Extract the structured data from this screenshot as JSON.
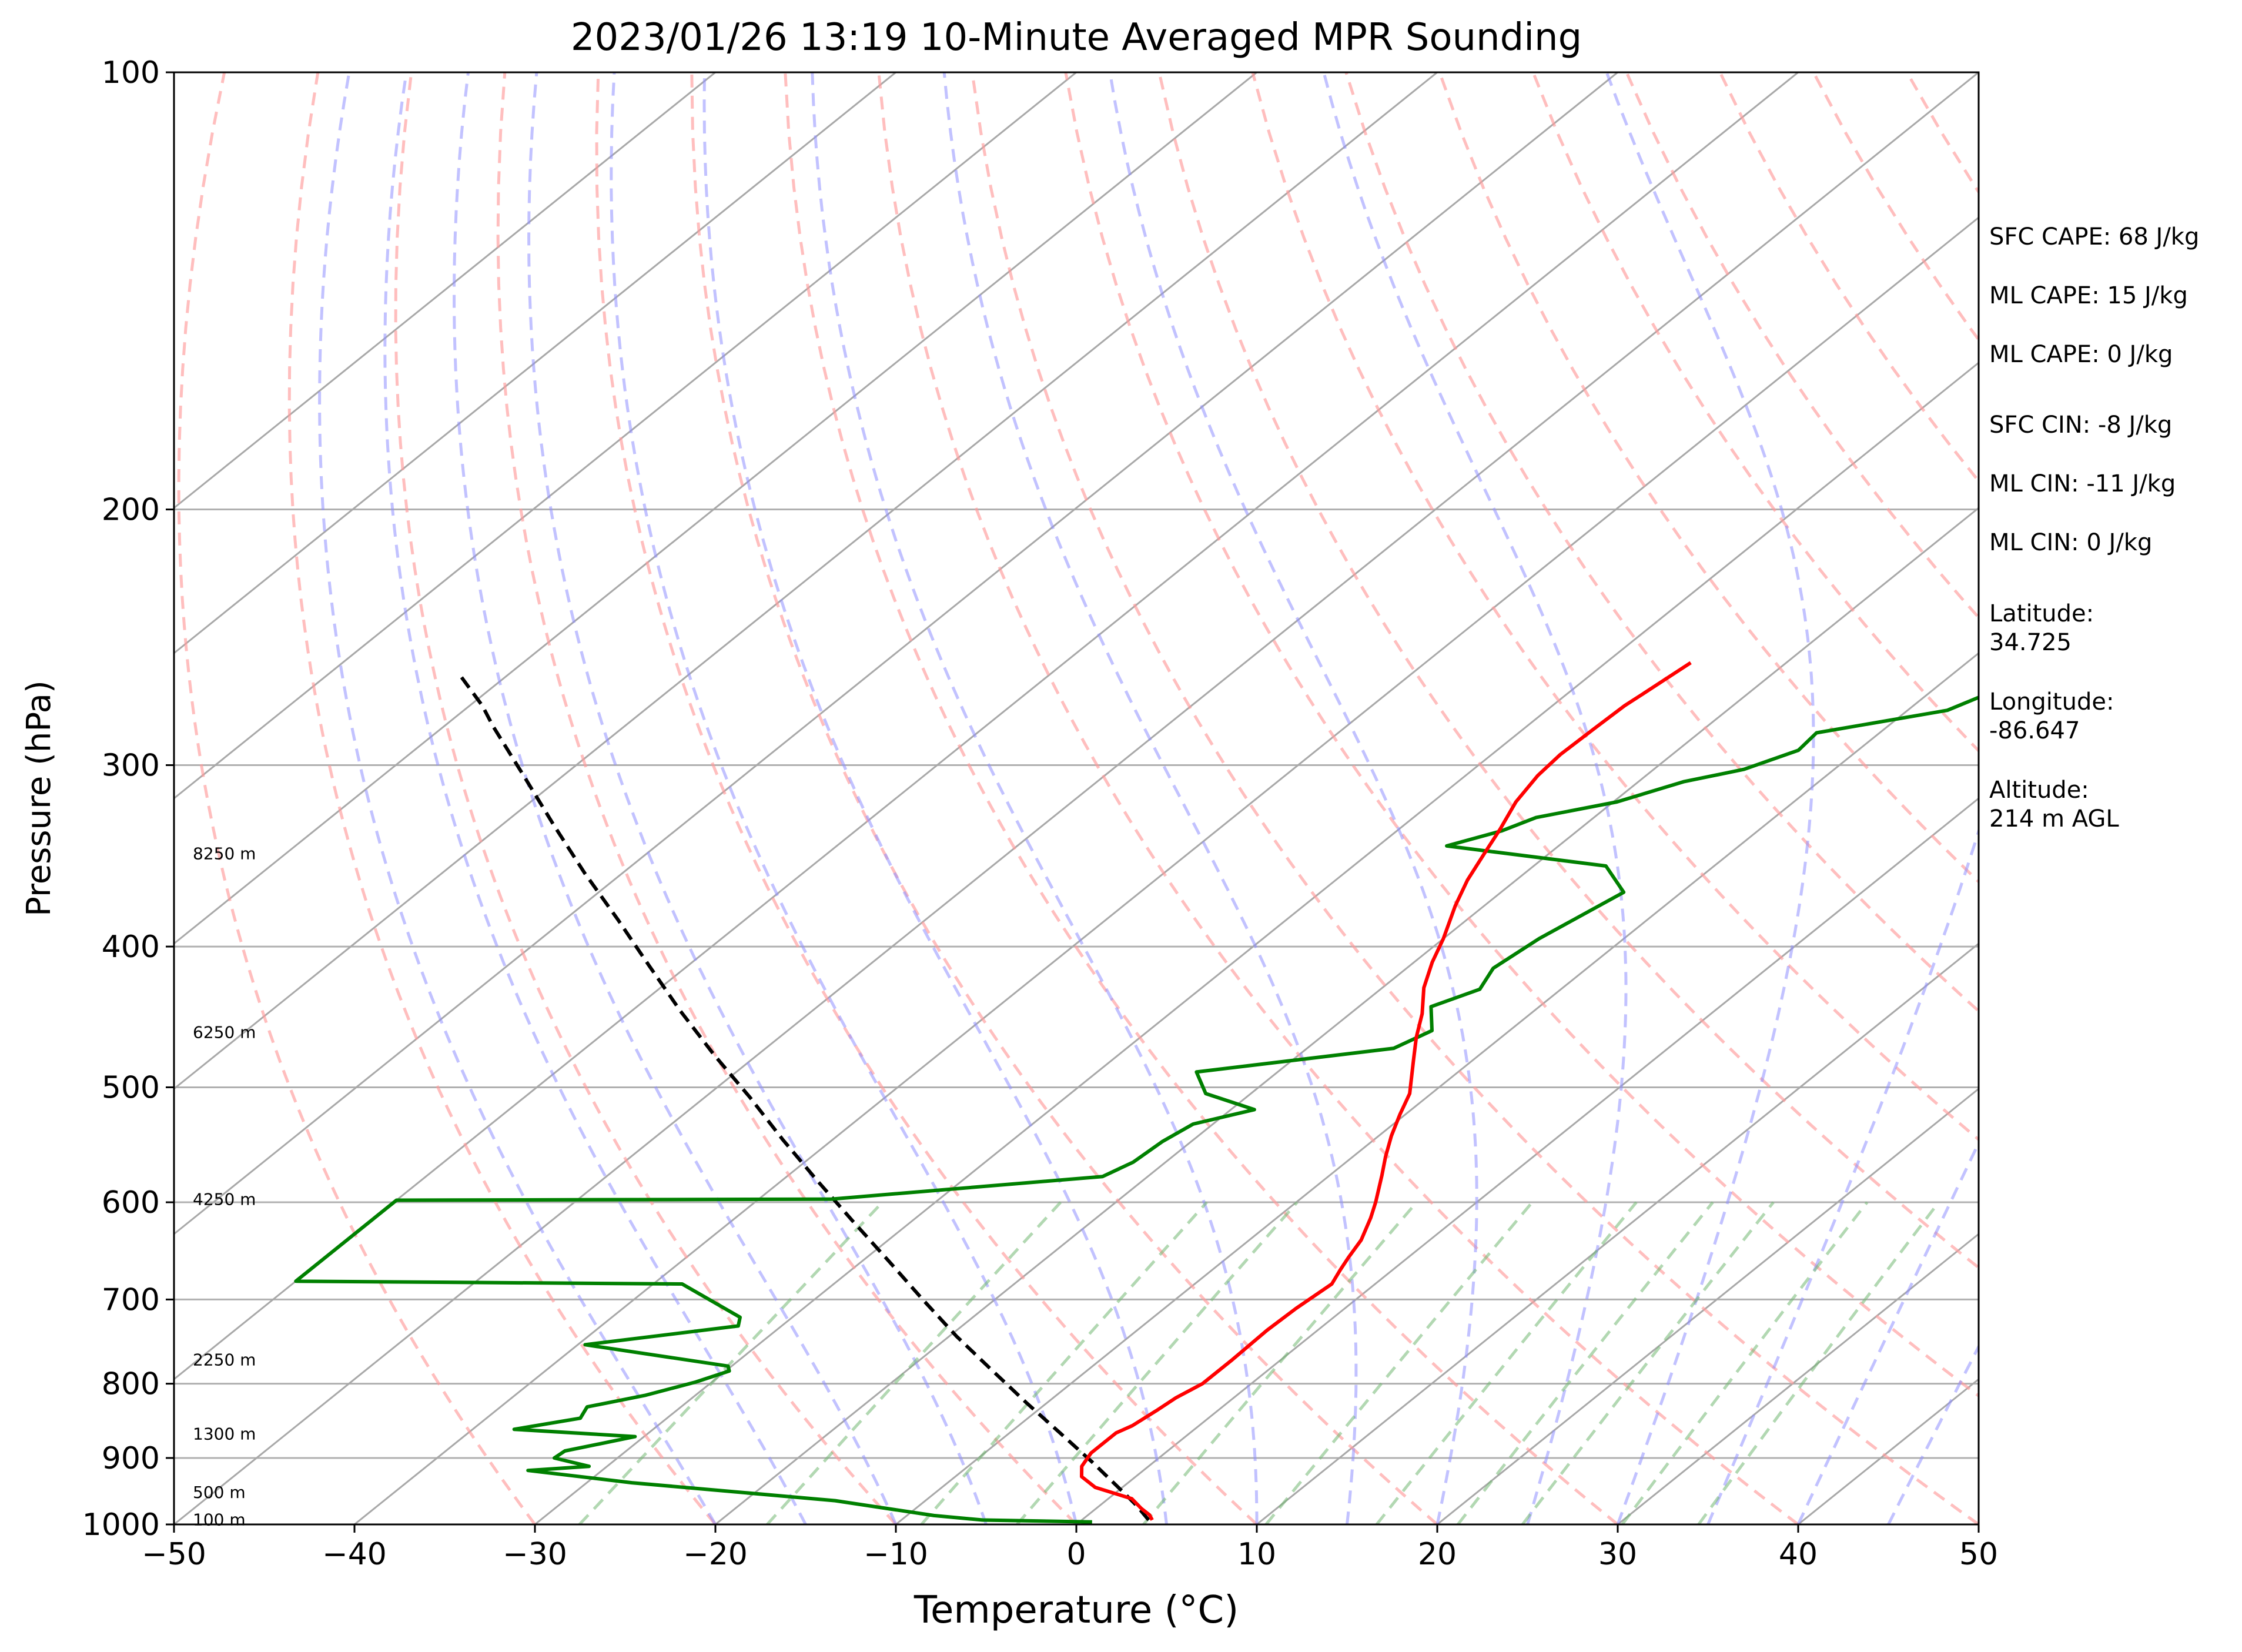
{
  "chart_data": {
    "type": "line",
    "subtype": "skew-T log-P sounding",
    "title": "2023/01/26 13:19 10-Minute Averaged MPR Sounding",
    "xlabel": "Temperature (°C)",
    "ylabel": "Pressure (hPa)",
    "xlim": [
      -50,
      50
    ],
    "ylim": [
      1000,
      100
    ],
    "y_scale": "log",
    "x_ticks": [
      "−50",
      "−40",
      "−30",
      "−20",
      "−10",
      "0",
      "10",
      "20",
      "30",
      "40",
      "50"
    ],
    "y_ticks": [
      "100",
      "200",
      "300",
      "400",
      "500",
      "600",
      "700",
      "800",
      "900",
      "1000"
    ],
    "grid": true,
    "legend": "none",
    "height_labels": [
      {
        "text": "8250 m",
        "p": 345
      },
      {
        "text": "6250 m",
        "p": 458
      },
      {
        "text": "4250 m",
        "p": 597
      },
      {
        "text": "2250 m",
        "p": 770
      },
      {
        "text": "1300 m",
        "p": 866
      },
      {
        "text": "500 m",
        "p": 950
      },
      {
        "text": "100 m",
        "p": 992
      }
    ],
    "stats": [
      "SFC CAPE: 68 J/kg",
      "ML CAPE: 15 J/kg",
      "ML CAPE: 0 J/kg",
      "SFC CIN: -8 J/kg",
      "ML CIN: -11 J/kg",
      "ML CIN: 0 J/kg"
    ],
    "location": {
      "latitude_label": "Latitude:",
      "latitude": "34.725",
      "longitude_label": "Longitude:",
      "longitude": "-86.647",
      "altitude_label": "Altitude:",
      "altitude": "214 m AGL"
    },
    "series": [
      {
        "role": "temperature",
        "color": "#ff0000",
        "points": [
          [
            3.9,
            993
          ],
          [
            3.4,
            985
          ],
          [
            2.5,
            975
          ],
          [
            1.3,
            960
          ],
          [
            -1.5,
            943
          ],
          [
            -3.0,
            927
          ],
          [
            -3.7,
            912
          ],
          [
            -4.1,
            893
          ],
          [
            -4.1,
            865
          ],
          [
            -3.7,
            855
          ],
          [
            -3.4,
            835
          ],
          [
            -3.2,
            818
          ],
          [
            -2.7,
            800
          ],
          [
            -2.7,
            770
          ],
          [
            -2.8,
            735
          ],
          [
            -2.7,
            710
          ],
          [
            -2.4,
            683
          ],
          [
            -2.9,
            668
          ],
          [
            -3.3,
            655
          ],
          [
            -3.8,
            637
          ],
          [
            -4.8,
            615
          ],
          [
            -5.6,
            600
          ],
          [
            -7.1,
            575
          ],
          [
            -8.2,
            558
          ],
          [
            -9.3,
            540
          ],
          [
            -10.3,
            522
          ],
          [
            -11.2,
            505
          ],
          [
            -13.2,
            480
          ],
          [
            -14.7,
            462
          ],
          [
            -16.0,
            445
          ],
          [
            -17.7,
            427
          ],
          [
            -19.0,
            410
          ],
          [
            -20.0,
            395
          ],
          [
            -21.6,
            375
          ],
          [
            -22.7,
            360
          ],
          [
            -23.6,
            345
          ],
          [
            -24.4,
            332
          ],
          [
            -25.4,
            318
          ],
          [
            -26.0,
            305
          ],
          [
            -26.2,
            295
          ],
          [
            -26.1,
            283
          ],
          [
            -26.0,
            273
          ],
          [
            -25.8,
            268
          ],
          [
            -25.3,
            255
          ]
        ]
      },
      {
        "role": "dewpoint",
        "color": "#008000",
        "points": [
          [
            0.7,
            996
          ],
          [
            -5.5,
            993
          ],
          [
            -8.5,
            986
          ],
          [
            -15.0,
            963
          ],
          [
            -27.5,
            936
          ],
          [
            -34.1,
            918
          ],
          [
            -31.0,
            912
          ],
          [
            -33.5,
            900
          ],
          [
            -33.4,
            890
          ],
          [
            -30.5,
            870
          ],
          [
            -37.7,
            860
          ],
          [
            -34.8,
            845
          ],
          [
            -35.2,
            830
          ],
          [
            -32.8,
            815
          ],
          [
            -30.9,
            798
          ],
          [
            -29.8,
            784
          ],
          [
            -30.2,
            778
          ],
          [
            -39.6,
            752
          ],
          [
            -32.4,
            730
          ],
          [
            -32.9,
            720
          ],
          [
            -38.4,
            683
          ],
          [
            -60.0,
            680
          ],
          [
            -60.0,
            598
          ],
          [
            -36.0,
            597
          ],
          [
            -22.5,
            576
          ],
          [
            -21.8,
            563
          ],
          [
            -21.6,
            545
          ],
          [
            -21.1,
            530
          ],
          [
            -18.7,
            518
          ],
          [
            -22.5,
            505
          ],
          [
            -24.5,
            488
          ],
          [
            -15.2,
            470
          ],
          [
            -14.3,
            457
          ],
          [
            -16.0,
            440
          ],
          [
            -14.5,
            428
          ],
          [
            -15.2,
            414
          ],
          [
            -14.7,
            395
          ],
          [
            -13.8,
            378
          ],
          [
            -13.2,
            367
          ],
          [
            -16.0,
            352
          ],
          [
            -26.2,
            341
          ],
          [
            -24.2,
            333
          ],
          [
            -23.2,
            326
          ],
          [
            -19.8,
            318
          ],
          [
            -17.5,
            308
          ],
          [
            -15.0,
            302
          ],
          [
            -13.3,
            293
          ],
          [
            -13.5,
            285
          ],
          [
            -7.8,
            275
          ],
          [
            -5.8,
            262
          ],
          [
            -8.6,
            256
          ]
        ]
      },
      {
        "role": "parcel profile",
        "color": "#000000",
        "style": "dashed",
        "points": [
          [
            3.7,
            993
          ],
          [
            2.0,
            970
          ],
          [
            0.2,
            948
          ],
          [
            -3.4,
            906
          ],
          [
            -7.2,
            865
          ],
          [
            -11.2,
            824
          ],
          [
            -15.3,
            783
          ],
          [
            -19.6,
            742
          ],
          [
            -24.0,
            700
          ],
          [
            -28.6,
            658
          ],
          [
            -33.3,
            618
          ],
          [
            -38.0,
            580
          ],
          [
            -42.8,
            543
          ],
          [
            -47.5,
            508
          ],
          [
            -52.4,
            475
          ],
          [
            -57.3,
            443
          ],
          [
            -62.2,
            412
          ],
          [
            -67.1,
            383
          ],
          [
            -72.1,
            356
          ],
          [
            -77.1,
            330
          ],
          [
            -82.2,
            305
          ],
          [
            -87.3,
            282
          ],
          [
            -89.3,
            273
          ],
          [
            -92.4,
            261
          ]
        ]
      }
    ]
  }
}
